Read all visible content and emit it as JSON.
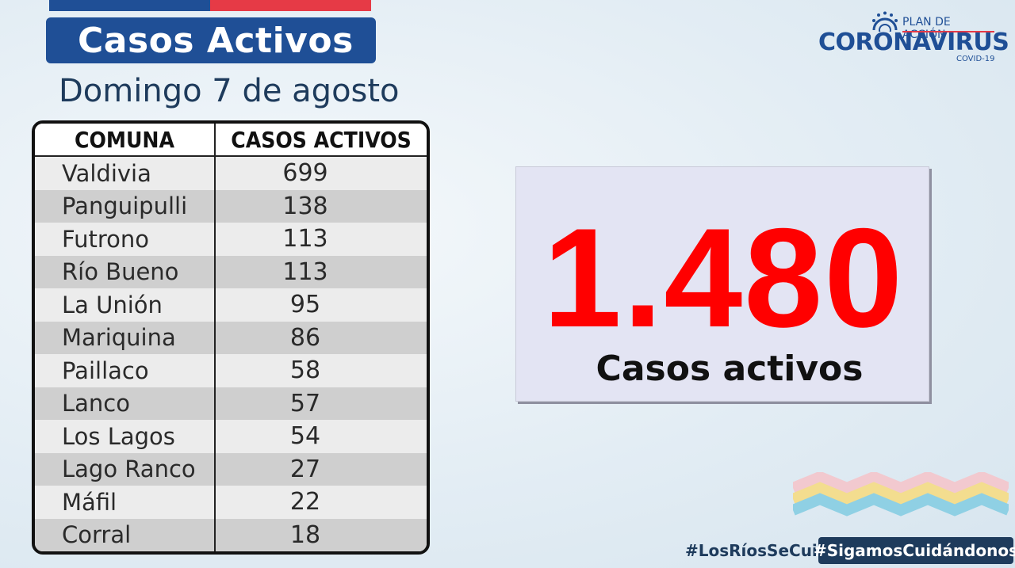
{
  "header": {
    "title": "Casos Activos",
    "date": "Domingo 7 de agosto"
  },
  "logo": {
    "plan": "PLAN DE ACCIÓN",
    "name": "CORONAVIRUS",
    "sub": "COVID-19"
  },
  "table": {
    "headers": [
      "COMUNA",
      "CASOS ACTIVOS"
    ],
    "rows": [
      {
        "comuna": "Valdivia",
        "casos": "699"
      },
      {
        "comuna": "Panguipulli",
        "casos": "138"
      },
      {
        "comuna": "Futrono",
        "casos": "113"
      },
      {
        "comuna": "Río Bueno",
        "casos": "113"
      },
      {
        "comuna": "La Unión",
        "casos": "95"
      },
      {
        "comuna": "Mariquina",
        "casos": "86"
      },
      {
        "comuna": "Paillaco",
        "casos": "58"
      },
      {
        "comuna": "Lanco",
        "casos": "57"
      },
      {
        "comuna": "Los Lagos",
        "casos": "54"
      },
      {
        "comuna": "Lago Ranco",
        "casos": "27"
      },
      {
        "comuna": "Máfil",
        "casos": "22"
      },
      {
        "comuna": "Corral",
        "casos": "18"
      }
    ]
  },
  "total": {
    "value": "1.480",
    "label": "Casos activos"
  },
  "footer": {
    "hashtag1": "#LosRíosSeCuida",
    "hashtag2": "#SigamosCuidándonos"
  },
  "colors": {
    "brand_blue": "#1f4f96",
    "accent_red": "#e63a46",
    "total_red": "#ff0000"
  }
}
